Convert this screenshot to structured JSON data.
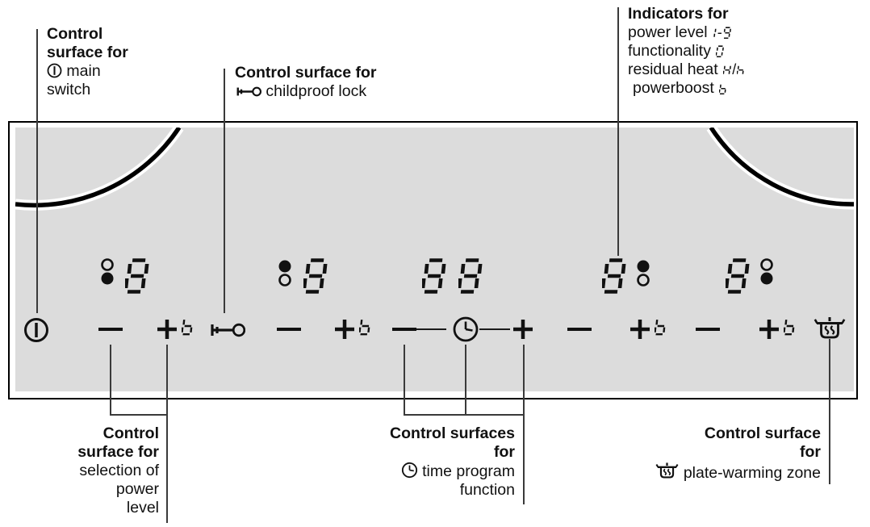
{
  "colors": {
    "panel_fill": "#dcdcdc",
    "ink": "#111111",
    "background": "#ffffff"
  },
  "callouts": {
    "main_switch": {
      "heading_line1": "Control",
      "heading_line2": "surface for",
      "icon": "main-switch-icon",
      "body_line1": "main",
      "body_line2": "switch"
    },
    "childproof": {
      "heading": "Control surface for",
      "icon": "childproof-lock-icon",
      "body": "childproof lock"
    },
    "indicators": {
      "heading": "Indicators for",
      "rows": [
        {
          "text": "power level",
          "symbol": "1-9"
        },
        {
          "text": "functionality",
          "symbol": "0"
        },
        {
          "text": "residual heat",
          "symbol": "H/h"
        },
        {
          "text": "powerboost",
          "symbol": "b"
        }
      ]
    },
    "power_level": {
      "heading_line1": "Control",
      "heading_line2": "surface for",
      "body_line1": "selection of",
      "body_line2": "power",
      "body_line3": "level"
    },
    "timer": {
      "heading_line1": "Control surfaces",
      "heading_line2": "for",
      "icon": "timer-clock-icon",
      "body_line1": "time program",
      "body_line2": "function"
    },
    "plate_warming": {
      "heading_line1": "Control surface",
      "heading_line2": "for",
      "icon": "plate-warming-icon",
      "body": "plate-warming zone"
    }
  },
  "panel": {
    "boost_label": "b",
    "displays": [
      {
        "name": "zone1-display",
        "value": "8",
        "dots": "left, open top / filled bottom"
      },
      {
        "name": "zone2-display",
        "value": "8",
        "dots": "left, filled top / open bottom"
      },
      {
        "name": "timer-display",
        "value": "88",
        "dots": "none"
      },
      {
        "name": "zone3-display",
        "value": "8",
        "dots": "right, filled top / open bottom"
      },
      {
        "name": "zone4-display",
        "value": "8",
        "dots": "right, open top / filled bottom"
      }
    ]
  }
}
